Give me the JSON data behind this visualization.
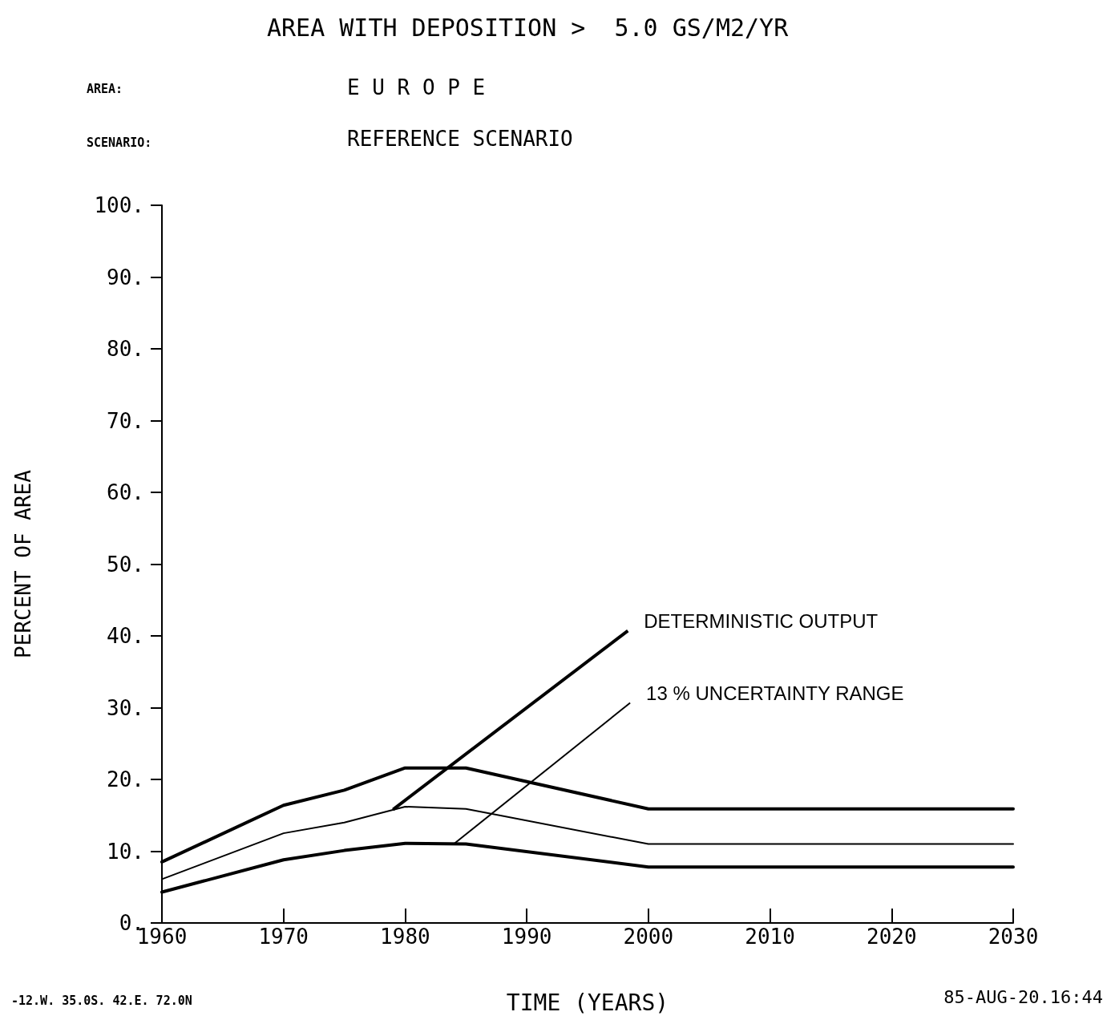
{
  "chart_data": {
    "type": "line",
    "title": "AREA WITH DEPOSITION >  5.0 GS/M2/YR",
    "xlabel": "TIME (YEARS)",
    "ylabel": "PERCENT OF AREA",
    "xlim": [
      1960,
      2030
    ],
    "xticks": [
      1960,
      1970,
      1980,
      1990,
      2000,
      2010,
      2020,
      2030
    ],
    "ylim": [
      0,
      100
    ],
    "yticks": [
      {
        "value": 0,
        "label": "0."
      },
      {
        "value": 10,
        "label": "10."
      },
      {
        "value": 20,
        "label": "20."
      },
      {
        "value": 30,
        "label": "30."
      },
      {
        "value": 40,
        "label": "40."
      },
      {
        "value": 50,
        "label": "50."
      },
      {
        "value": 60,
        "label": "60."
      },
      {
        "value": 70,
        "label": "70."
      },
      {
        "value": 80,
        "label": "80."
      },
      {
        "value": 90,
        "label": "90."
      },
      {
        "value": 100,
        "label": "100."
      }
    ],
    "grid": false,
    "marker": "none",
    "line_style": "solid",
    "series": [
      {
        "color": "#000000",
        "x": [
          1960,
          1970,
          1975,
          1980,
          1985,
          2000,
          2030
        ],
        "values": [
          8.5,
          16.4,
          18.5,
          21.6,
          21.6,
          15.9,
          15.9
        ]
      },
      {
        "color": "#000000",
        "x": [
          1960,
          1970,
          1975,
          1980,
          1985,
          2000,
          2030
        ],
        "values": [
          6.1,
          12.5,
          14.0,
          16.2,
          15.9,
          11.0,
          11.0
        ]
      },
      {
        "color": "#000000",
        "x": [
          1960,
          1970,
          1975,
          1980,
          1985,
          2000,
          2030
        ],
        "values": [
          4.3,
          8.8,
          10.1,
          11.1,
          11.0,
          7.8,
          7.8
        ]
      }
    ],
    "annotations": [
      "AREA:",
      "E U R O P E",
      "SCENARIO:",
      "REFERENCE SCENARIO",
      "-12.W. 35.0S. 42.E. 72.0N",
      "85-AUG-20.16:44",
      {
        "text": "DETERMINISTIC OUTPUT",
        "x": 1979,
        "y": 15.8
      },
      {
        "text": "13 % UNCERTAINTY RANGE",
        "x": 1984,
        "y": 11
      }
    ]
  }
}
